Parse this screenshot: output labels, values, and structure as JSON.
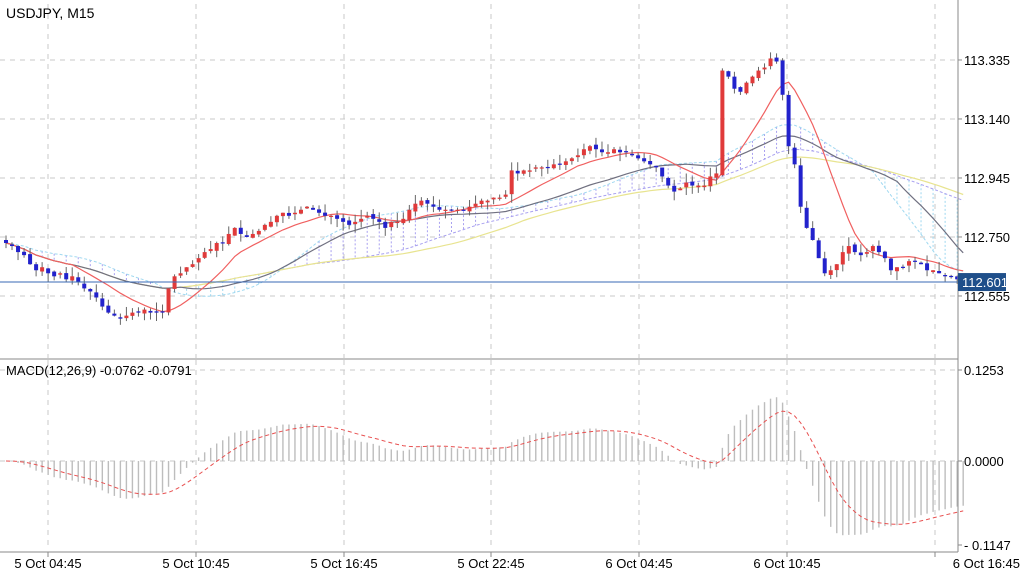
{
  "chart_title": "USDJPY, M15",
  "indicator_label": "MACD(12,26,9) -0.0762 -0.0791",
  "current_price_tag": "112.601",
  "colors": {
    "bull": "#e03a3a",
    "bear": "#2222cc",
    "wick": "#666666",
    "grid": "#c8c8c8",
    "ma_fast": "#f06060",
    "ma_slow": "#707080",
    "ma_long": "#e8e490",
    "kumo_a": "#9fd8f0",
    "kumo_b": "#a8a0f0",
    "macd_hist": "#bdbdbd",
    "macd_signal": "#e85050",
    "price_line": "#3a6ab5",
    "price_tag_bg": "#1f4f8a"
  },
  "chart_data": {
    "type": "candlestick",
    "title": "USDJPY, M15",
    "x_tick_labels": [
      "5 Oct 04:45",
      "5 Oct 10:45",
      "5 Oct 16:45",
      "5 Oct 22:45",
      "6 Oct 04:45",
      "6 Oct 10:45",
      "6 Oct 16:45"
    ],
    "price_axis": {
      "tick_labels": [
        "113.335",
        "113.140",
        "112.945",
        "112.750",
        "112.555"
      ],
      "ticks": [
        113.335,
        113.14,
        112.945,
        112.75,
        112.555
      ],
      "range": [
        112.35,
        113.52
      ]
    },
    "current_price": 112.601,
    "close": [
      112.73,
      112.72,
      112.7,
      112.69,
      112.66,
      112.64,
      112.65,
      112.63,
      112.62,
      112.63,
      112.61,
      112.62,
      112.6,
      112.58,
      112.57,
      112.55,
      112.52,
      112.5,
      112.49,
      112.48,
      112.49,
      112.5,
      112.5,
      112.51,
      112.5,
      112.5,
      112.5,
      112.58,
      112.62,
      112.63,
      112.65,
      112.66,
      112.68,
      112.7,
      112.71,
      112.73,
      112.73,
      112.76,
      112.78,
      112.76,
      112.75,
      112.76,
      112.77,
      112.79,
      112.8,
      112.82,
      112.83,
      112.82,
      112.83,
      112.84,
      112.85,
      112.84,
      112.83,
      112.82,
      112.82,
      112.81,
      112.8,
      112.79,
      112.8,
      112.81,
      112.82,
      112.81,
      112.8,
      112.78,
      112.8,
      112.8,
      112.81,
      112.84,
      112.86,
      112.87,
      112.86,
      112.85,
      112.84,
      112.84,
      112.84,
      112.84,
      112.84,
      112.85,
      112.86,
      112.87,
      112.87,
      112.88,
      112.88,
      112.89,
      112.97,
      112.96,
      112.97,
      112.97,
      112.98,
      112.98,
      112.98,
      112.99,
      112.99,
      113.0,
      113.01,
      113.02,
      113.04,
      113.05,
      113.04,
      113.03,
      113.03,
      113.04,
      113.03,
      113.03,
      113.02,
      113.01,
      113.0,
      112.99,
      112.98,
      112.95,
      112.92,
      112.9,
      112.91,
      112.93,
      112.92,
      112.92,
      112.92,
      112.95,
      112.96,
      113.3,
      113.28,
      113.24,
      113.23,
      113.26,
      113.28,
      113.3,
      113.31,
      113.34,
      113.33,
      113.22,
      113.05,
      112.99,
      112.85,
      112.78,
      112.74,
      112.68,
      112.63,
      112.64,
      112.66,
      112.7,
      112.72,
      112.7,
      112.69,
      112.7,
      112.72,
      112.7,
      112.68,
      112.64,
      112.65,
      112.65,
      112.67,
      112.67,
      112.66,
      112.64,
      112.64,
      112.63,
      112.62,
      112.62,
      112.61,
      112.6
    ]
  }
}
